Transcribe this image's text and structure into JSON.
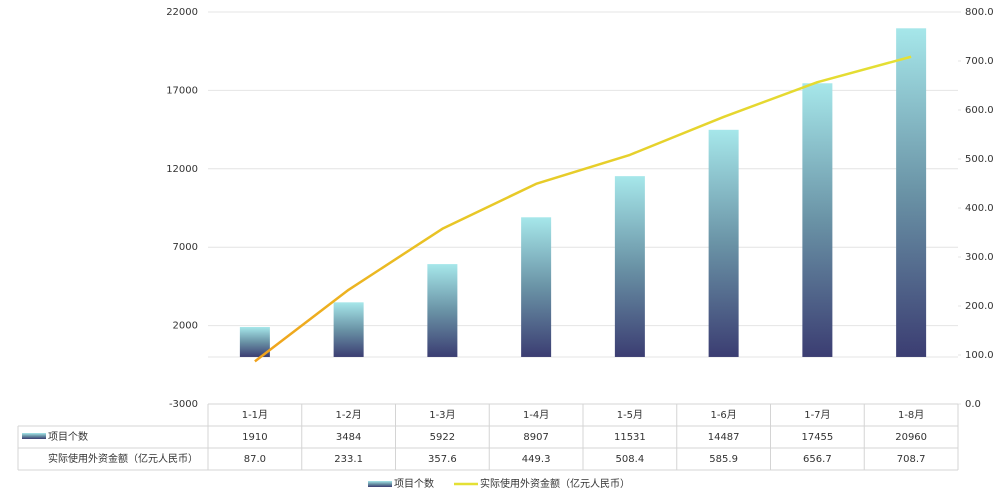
{
  "chart_data": {
    "type": "bar-line",
    "categories": [
      "1-1月",
      "1-2月",
      "1-3月",
      "1-4月",
      "1-5月",
      "1-6月",
      "1-7月",
      "1-8月"
    ],
    "series": [
      {
        "name": "项目个数",
        "type": "bar",
        "color": "#3b3d72",
        "values": [
          1910,
          3484,
          5922,
          8907,
          11531,
          14487,
          17455,
          20960
        ]
      },
      {
        "name": "实际使用外资金额（亿元人民币）",
        "type": "line",
        "axis": "y2",
        "color": "#e4e034",
        "values": [
          87.0,
          233.1,
          357.6,
          449.3,
          508.4,
          585.9,
          656.7,
          708.7
        ],
        "value_labels": [
          "87.0",
          "233.1",
          "357.6",
          "449.3",
          "508.4",
          "585.9",
          "656.7",
          "708.7"
        ]
      }
    ],
    "ylim": [
      -3000,
      22000
    ],
    "yticks": [
      -3000,
      2000,
      7000,
      12000,
      17000,
      22000
    ],
    "y2lim": [
      0,
      800
    ],
    "y2ticks": [
      {
        "value": 0,
        "label": "0.0"
      },
      {
        "value": 100,
        "label": "100.0"
      },
      {
        "value": 200,
        "label": "200.0"
      },
      {
        "value": 300,
        "label": "300.0"
      },
      {
        "value": 400,
        "label": "400.0"
      },
      {
        "value": 500,
        "label": "500.0"
      },
      {
        "value": 600,
        "label": "600.0"
      },
      {
        "value": 700,
        "label": "700.0"
      },
      {
        "value": 800,
        "label": "800.0"
      }
    ],
    "grid": true,
    "legend": "bottom"
  }
}
